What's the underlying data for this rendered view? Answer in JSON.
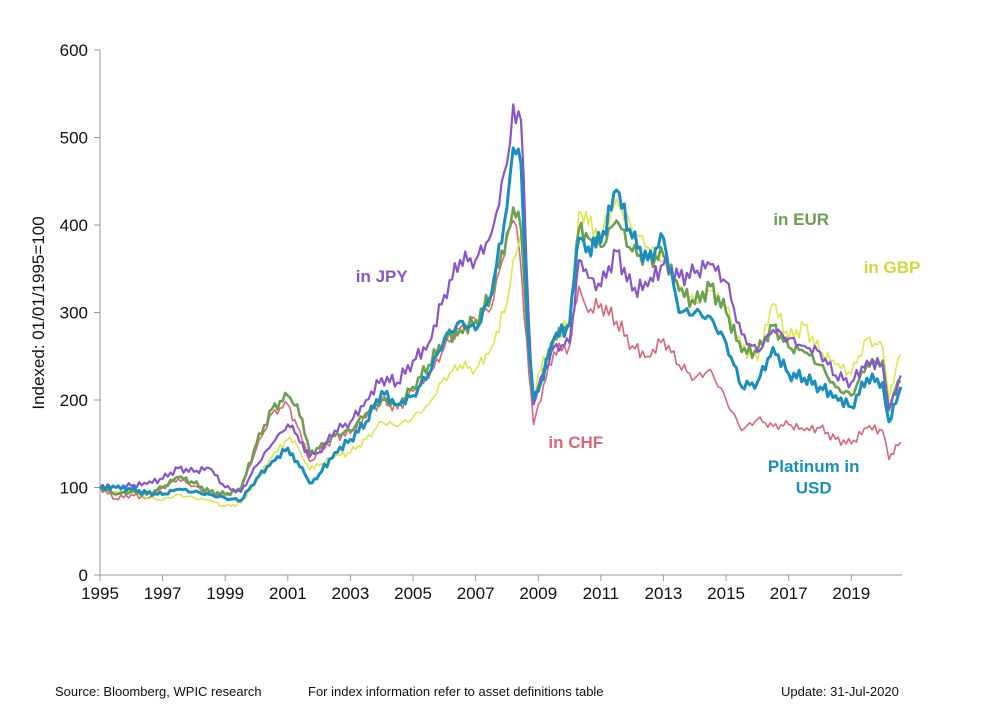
{
  "chart_data": {
    "type": "line",
    "ylabel": "Indexed:  01/01/1995=100",
    "ylim": [
      0,
      600
    ],
    "yticks": [
      0,
      100,
      200,
      300,
      400,
      500,
      600
    ],
    "xlim": [
      1995,
      2020.62
    ],
    "xticks": [
      1995,
      1997,
      1999,
      2001,
      2003,
      2005,
      2007,
      2009,
      2011,
      2013,
      2015,
      2017,
      2019
    ],
    "grid": false,
    "legend": "inline labels",
    "series": [
      {
        "name": "in CHF",
        "color": "#d9667a",
        "width": 1.6,
        "points": [
          [
            1995,
            100
          ],
          [
            1995.5,
            87
          ],
          [
            1996,
            92
          ],
          [
            1996.5,
            88
          ],
          [
            1997,
            100
          ],
          [
            1997.5,
            110
          ],
          [
            1998,
            102
          ],
          [
            1998.5,
            93
          ],
          [
            1999,
            92
          ],
          [
            1999.5,
            97
          ],
          [
            2000,
            145
          ],
          [
            2000.5,
            185
          ],
          [
            2001,
            195
          ],
          [
            2001.3,
            170
          ],
          [
            2001.7,
            130
          ],
          [
            2002,
            140
          ],
          [
            2002.5,
            158
          ],
          [
            2003,
            162
          ],
          [
            2003.5,
            180
          ],
          [
            2004,
            200
          ],
          [
            2004.5,
            190
          ],
          [
            2005,
            210
          ],
          [
            2005.5,
            225
          ],
          [
            2006,
            260
          ],
          [
            2006.5,
            282
          ],
          [
            2007,
            292
          ],
          [
            2007.5,
            305
          ],
          [
            2008,
            385
          ],
          [
            2008.2,
            405
          ],
          [
            2008.4,
            370
          ],
          [
            2008.7,
            230
          ],
          [
            2008.85,
            172
          ],
          [
            2009,
            195
          ],
          [
            2009.5,
            255
          ],
          [
            2010,
            262
          ],
          [
            2010.3,
            330
          ],
          [
            2010.6,
            300
          ],
          [
            2011,
            310
          ],
          [
            2011.5,
            290
          ],
          [
            2012,
            262
          ],
          [
            2012.5,
            250
          ],
          [
            2013,
            270
          ],
          [
            2013.5,
            240
          ],
          [
            2014,
            225
          ],
          [
            2014.5,
            235
          ],
          [
            2015,
            200
          ],
          [
            2015.5,
            165
          ],
          [
            2016,
            178
          ],
          [
            2016.5,
            170
          ],
          [
            2017,
            172
          ],
          [
            2017.5,
            165
          ],
          [
            2018,
            168
          ],
          [
            2018.5,
            155
          ],
          [
            2019,
            150
          ],
          [
            2019.5,
            168
          ],
          [
            2020,
            165
          ],
          [
            2020.2,
            132
          ],
          [
            2020.5,
            148
          ],
          [
            2020.58,
            152
          ]
        ]
      },
      {
        "name": "in GBP",
        "color": "#dde64a",
        "width": 1.6,
        "points": [
          [
            1995,
            100
          ],
          [
            1995.5,
            95
          ],
          [
            1996,
            97
          ],
          [
            1996.5,
            88
          ],
          [
            1997,
            86
          ],
          [
            1997.5,
            92
          ],
          [
            1998,
            88
          ],
          [
            1998.5,
            85
          ],
          [
            1999,
            78
          ],
          [
            1999.5,
            82
          ],
          [
            2000,
            108
          ],
          [
            2000.5,
            135
          ],
          [
            2001,
            155
          ],
          [
            2001.3,
            148
          ],
          [
            2001.7,
            120
          ],
          [
            2002,
            125
          ],
          [
            2002.5,
            135
          ],
          [
            2003,
            140
          ],
          [
            2003.5,
            155
          ],
          [
            2004,
            175
          ],
          [
            2004.5,
            170
          ],
          [
            2005,
            180
          ],
          [
            2005.5,
            195
          ],
          [
            2006,
            225
          ],
          [
            2006.5,
            240
          ],
          [
            2007,
            235
          ],
          [
            2007.5,
            260
          ],
          [
            2008,
            310
          ],
          [
            2008.2,
            360
          ],
          [
            2008.45,
            390
          ],
          [
            2008.7,
            280
          ],
          [
            2008.85,
            205
          ],
          [
            2009,
            230
          ],
          [
            2009.5,
            270
          ],
          [
            2010,
            290
          ],
          [
            2010.3,
            415
          ],
          [
            2010.6,
            400
          ],
          [
            2011,
            390
          ],
          [
            2011.5,
            430
          ],
          [
            2012,
            395
          ],
          [
            2012.5,
            375
          ],
          [
            2013,
            360
          ],
          [
            2013.5,
            330
          ],
          [
            2014,
            310
          ],
          [
            2014.5,
            325
          ],
          [
            2015,
            305
          ],
          [
            2015.5,
            260
          ],
          [
            2016,
            245
          ],
          [
            2016.5,
            310
          ],
          [
            2017,
            270
          ],
          [
            2017.5,
            285
          ],
          [
            2018,
            255
          ],
          [
            2018.5,
            240
          ],
          [
            2019,
            230
          ],
          [
            2019.5,
            270
          ],
          [
            2020,
            260
          ],
          [
            2020.2,
            200
          ],
          [
            2020.5,
            248
          ],
          [
            2020.58,
            252
          ]
        ]
      },
      {
        "name": "in EUR",
        "color": "#6aa050",
        "width": 2.6,
        "points": [
          [
            1995,
            100
          ],
          [
            1995.5,
            92
          ],
          [
            1996,
            95
          ],
          [
            1996.5,
            92
          ],
          [
            1997,
            100
          ],
          [
            1997.5,
            112
          ],
          [
            1998,
            105
          ],
          [
            1998.5,
            95
          ],
          [
            1999,
            92
          ],
          [
            1999.5,
            98
          ],
          [
            2000,
            150
          ],
          [
            2000.5,
            190
          ],
          [
            2001,
            205
          ],
          [
            2001.3,
            195
          ],
          [
            2001.7,
            140
          ],
          [
            2002,
            145
          ],
          [
            2002.5,
            160
          ],
          [
            2003,
            165
          ],
          [
            2003.5,
            185
          ],
          [
            2004,
            200
          ],
          [
            2004.5,
            195
          ],
          [
            2005,
            215
          ],
          [
            2005.5,
            240
          ],
          [
            2006,
            270
          ],
          [
            2006.5,
            280
          ],
          [
            2007,
            290
          ],
          [
            2007.5,
            320
          ],
          [
            2008,
            390
          ],
          [
            2008.2,
            420
          ],
          [
            2008.45,
            395
          ],
          [
            2008.7,
            255
          ],
          [
            2008.85,
            200
          ],
          [
            2009,
            215
          ],
          [
            2009.5,
            270
          ],
          [
            2010,
            290
          ],
          [
            2010.3,
            395
          ],
          [
            2010.6,
            385
          ],
          [
            2011,
            375
          ],
          [
            2011.5,
            405
          ],
          [
            2012,
            370
          ],
          [
            2012.5,
            360
          ],
          [
            2013,
            365
          ],
          [
            2013.5,
            325
          ],
          [
            2014,
            310
          ],
          [
            2014.5,
            330
          ],
          [
            2015,
            300
          ],
          [
            2015.5,
            255
          ],
          [
            2016,
            255
          ],
          [
            2016.5,
            285
          ],
          [
            2017,
            260
          ],
          [
            2017.5,
            255
          ],
          [
            2018,
            240
          ],
          [
            2018.5,
            215
          ],
          [
            2019,
            205
          ],
          [
            2019.5,
            240
          ],
          [
            2020,
            245
          ],
          [
            2020.2,
            188
          ],
          [
            2020.5,
            222
          ],
          [
            2020.58,
            220
          ]
        ]
      },
      {
        "name": "in JPY",
        "color": "#8855cc",
        "width": 2.2,
        "points": [
          [
            1995,
            100
          ],
          [
            1995.5,
            100
          ],
          [
            1996,
            102
          ],
          [
            1996.5,
            104
          ],
          [
            1997,
            110
          ],
          [
            1997.5,
            122
          ],
          [
            1998,
            118
          ],
          [
            1998.5,
            122
          ],
          [
            1999,
            100
          ],
          [
            1999.5,
            95
          ],
          [
            2000,
            125
          ],
          [
            2000.5,
            150
          ],
          [
            2001,
            172
          ],
          [
            2001.3,
            160
          ],
          [
            2001.7,
            135
          ],
          [
            2002,
            140
          ],
          [
            2002.5,
            165
          ],
          [
            2003,
            175
          ],
          [
            2003.5,
            200
          ],
          [
            2004,
            225
          ],
          [
            2004.5,
            220
          ],
          [
            2005,
            245
          ],
          [
            2005.5,
            265
          ],
          [
            2006,
            320
          ],
          [
            2006.5,
            360
          ],
          [
            2007,
            360
          ],
          [
            2007.5,
            390
          ],
          [
            2008,
            470
          ],
          [
            2008.2,
            538
          ],
          [
            2008.45,
            520
          ],
          [
            2008.7,
            290
          ],
          [
            2008.85,
            195
          ],
          [
            2009,
            215
          ],
          [
            2009.5,
            260
          ],
          [
            2010,
            265
          ],
          [
            2010.3,
            360
          ],
          [
            2010.6,
            340
          ],
          [
            2011,
            330
          ],
          [
            2011.5,
            370
          ],
          [
            2012,
            325
          ],
          [
            2012.5,
            330
          ],
          [
            2013,
            355
          ],
          [
            2013.5,
            340
          ],
          [
            2014,
            345
          ],
          [
            2014.5,
            355
          ],
          [
            2015,
            335
          ],
          [
            2015.5,
            275
          ],
          [
            2016,
            255
          ],
          [
            2016.5,
            280
          ],
          [
            2017,
            270
          ],
          [
            2017.5,
            262
          ],
          [
            2018,
            255
          ],
          [
            2018.5,
            228
          ],
          [
            2019,
            220
          ],
          [
            2019.5,
            245
          ],
          [
            2020,
            240
          ],
          [
            2020.2,
            190
          ],
          [
            2020.5,
            220
          ],
          [
            2020.58,
            228
          ]
        ]
      },
      {
        "name": "Platinum  in USD",
        "color": "#1a8fbf",
        "width": 3.0,
        "points": [
          [
            1995,
            100
          ],
          [
            1995.5,
            100
          ],
          [
            1996,
            98
          ],
          [
            1996.5,
            94
          ],
          [
            1997,
            92
          ],
          [
            1997.5,
            98
          ],
          [
            1998,
            95
          ],
          [
            1998.5,
            92
          ],
          [
            1999,
            88
          ],
          [
            1999.5,
            85
          ],
          [
            2000,
            110
          ],
          [
            2000.5,
            130
          ],
          [
            2001,
            145
          ],
          [
            2001.3,
            130
          ],
          [
            2001.7,
            105
          ],
          [
            2002,
            115
          ],
          [
            2002.5,
            140
          ],
          [
            2003,
            155
          ],
          [
            2003.5,
            175
          ],
          [
            2004,
            210
          ],
          [
            2004.5,
            195
          ],
          [
            2005,
            205
          ],
          [
            2005.5,
            230
          ],
          [
            2006,
            270
          ],
          [
            2006.5,
            290
          ],
          [
            2007,
            280
          ],
          [
            2007.5,
            320
          ],
          [
            2008,
            420
          ],
          [
            2008.2,
            488
          ],
          [
            2008.45,
            470
          ],
          [
            2008.7,
            260
          ],
          [
            2008.85,
            200
          ],
          [
            2009,
            210
          ],
          [
            2009.5,
            270
          ],
          [
            2010,
            285
          ],
          [
            2010.3,
            385
          ],
          [
            2010.6,
            375
          ],
          [
            2011,
            380
          ],
          [
            2011.5,
            440
          ],
          [
            2012,
            385
          ],
          [
            2012.5,
            360
          ],
          [
            2013,
            385
          ],
          [
            2013.5,
            300
          ],
          [
            2014,
            300
          ],
          [
            2014.5,
            295
          ],
          [
            2015,
            265
          ],
          [
            2015.5,
            215
          ],
          [
            2016,
            220
          ],
          [
            2016.5,
            260
          ],
          [
            2017,
            230
          ],
          [
            2017.5,
            225
          ],
          [
            2018,
            215
          ],
          [
            2018.5,
            205
          ],
          [
            2019,
            192
          ],
          [
            2019.5,
            225
          ],
          [
            2020,
            220
          ],
          [
            2020.2,
            175
          ],
          [
            2020.5,
            205
          ],
          [
            2020.58,
            215
          ]
        ]
      }
    ],
    "annotations": [
      {
        "text": "in JPY",
        "x": 2004.0,
        "y": 335,
        "color": "#8855cc"
      },
      {
        "text": "in EUR",
        "x": 2017.4,
        "y": 400,
        "color": "#6aa050"
      },
      {
        "text": "in GBP",
        "x": 2020.3,
        "y": 345,
        "color": "#d0d83a"
      },
      {
        "text": "in CHF",
        "x": 2010.2,
        "y": 145,
        "color": "#d9667a"
      },
      {
        "text": "Platinum  in",
        "x": 2017.8,
        "y": 118,
        "color": "#1a8fbf"
      },
      {
        "text": "USD",
        "x": 2017.8,
        "y": 93,
        "color": "#1a8fbf"
      }
    ]
  },
  "footer": {
    "source": "Source: Bloomberg, WPIC research",
    "note": "For index information refer to asset definitions table",
    "update": "Update: 31-Jul-2020"
  }
}
